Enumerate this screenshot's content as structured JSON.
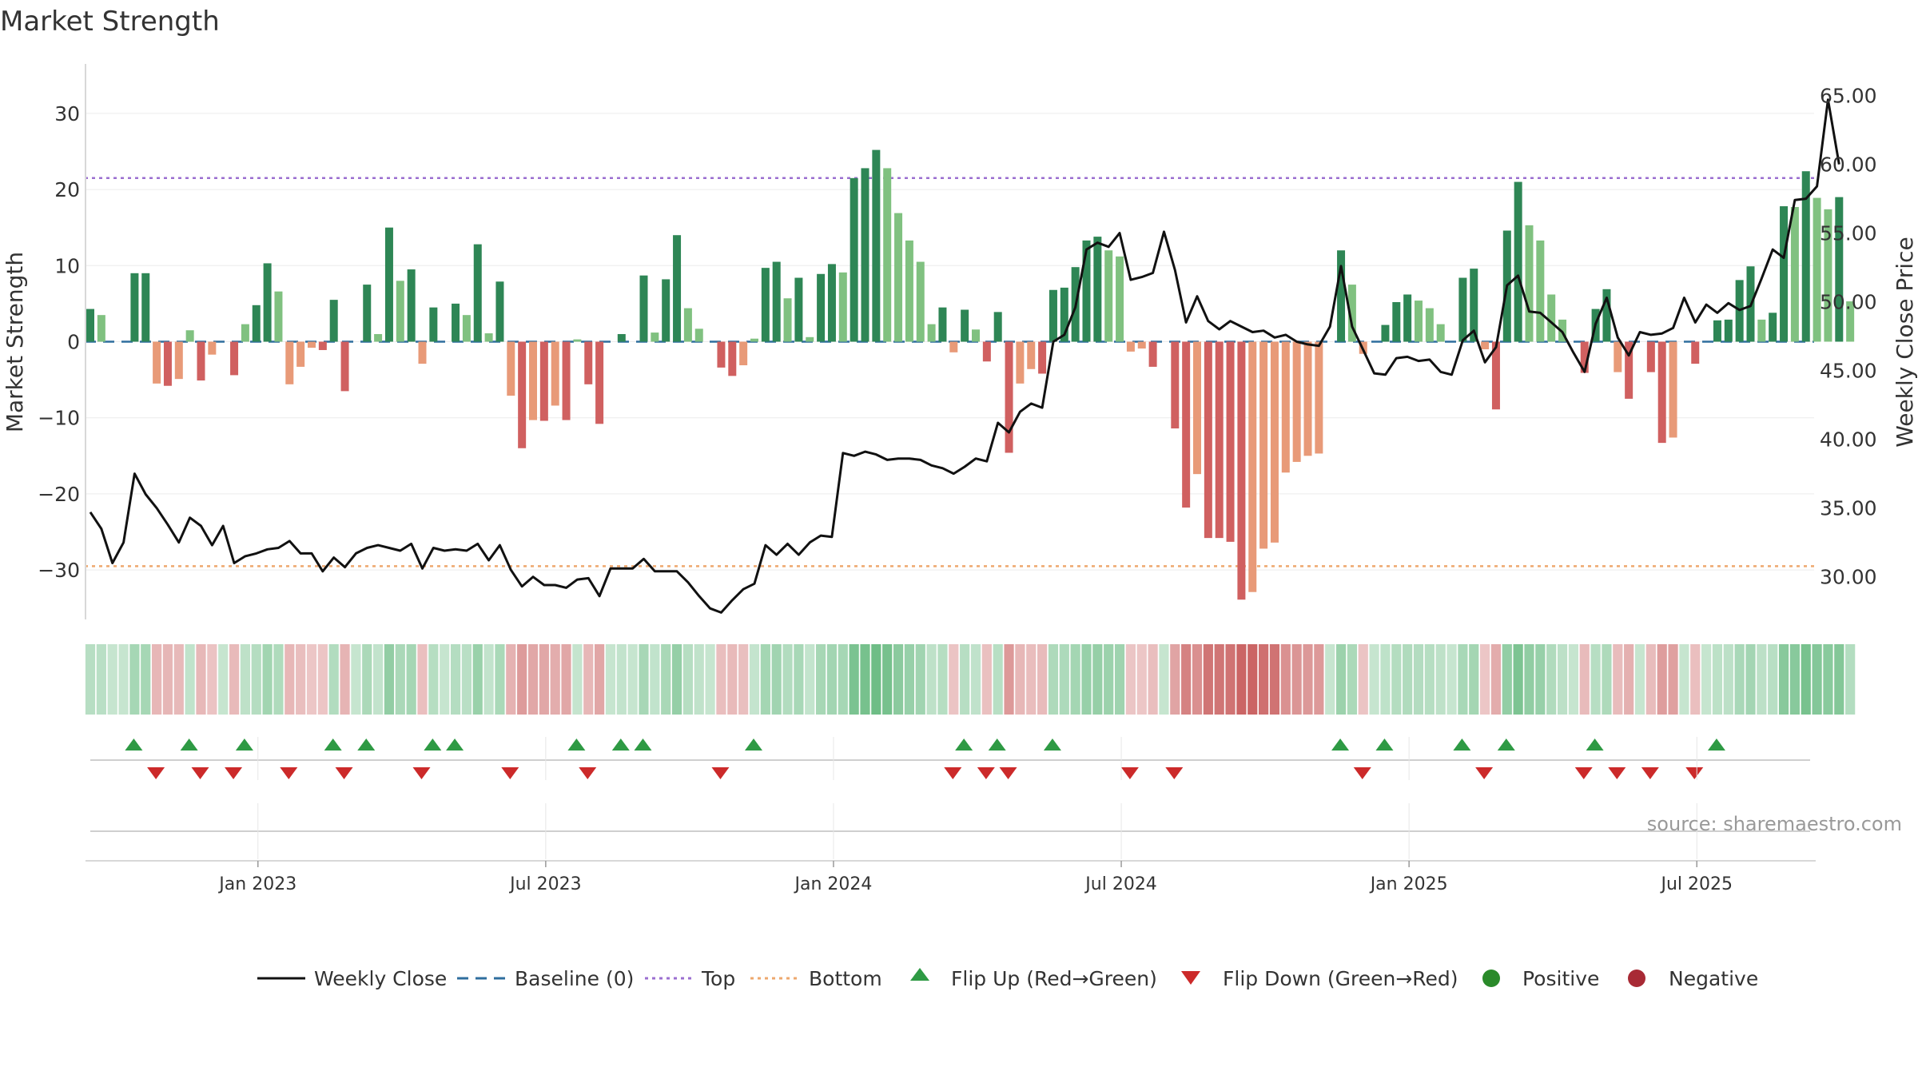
{
  "chart_data": {
    "type": "bar",
    "title": "Market Strength",
    "source": "source: sharemaestro.com",
    "ylabel_left": "Market Strength",
    "ylabel_right": "Weekly Close Price",
    "y_ticks_left": [
      30,
      20,
      10,
      0,
      -10,
      -20,
      -30
    ],
    "y_ticks_left_labels": [
      "30",
      "20",
      "10",
      "0",
      "−10",
      "−20",
      "−30"
    ],
    "y_ticks_right": [
      "65.00",
      "60.00",
      "55.00",
      "50.00",
      "45.00",
      "40.00",
      "35.00",
      "30.00"
    ],
    "y_ticks_right_values": [
      65,
      60,
      55,
      50,
      45,
      40,
      35,
      30
    ],
    "ylim_left": [
      -36.5,
      36.5
    ],
    "ylim_right": [
      26.9,
      67.3
    ],
    "x_tick_labels": [
      "Jan 2023",
      "Jul 2023",
      "Jan 2024",
      "Jul 2024",
      "Jan 2025",
      "Jul 2025"
    ],
    "x_tick_weeks": [
      15,
      41,
      67,
      93,
      119,
      145
    ],
    "top_line": 21.5,
    "bottom_line": -29.5,
    "strength": [
      4.3,
      3.5,
      0,
      0,
      9,
      9,
      -5.5,
      -5.8,
      -4.9,
      1.5,
      -5.1,
      -1.7,
      0,
      -4.4,
      2.3,
      4.8,
      10.3,
      6.6,
      -5.6,
      -3.3,
      -0.8,
      -1.1,
      5.5,
      -6.5,
      0,
      7.5,
      1,
      15,
      8,
      9.5,
      -2.9,
      4.5,
      0,
      5,
      3.5,
      12.8,
      1.1,
      7.9,
      -7.1,
      -14,
      -10.3,
      -10.4,
      -8.4,
      -10.3,
      0.3,
      -5.6,
      -10.8,
      0,
      1,
      0,
      8.7,
      1.2,
      8.2,
      14,
      4.4,
      1.7,
      0,
      -3.4,
      -4.5,
      -3.1,
      0.4,
      9.7,
      10.5,
      5.7,
      8.4,
      0.6,
      8.9,
      10.2,
      9.1,
      21.5,
      22.8,
      25.2,
      22.8,
      16.9,
      13.3,
      10.5,
      2.3,
      4.5,
      -1.4,
      4.2,
      1.6,
      -2.6,
      3.9,
      -14.6,
      -5.5,
      -3.6,
      -4.2,
      6.8,
      7.1,
      9.8,
      13.3,
      13.8,
      12,
      11.2,
      -1.3,
      -0.9,
      -3.3,
      0,
      -11.4,
      -21.8,
      -17.4,
      -25.8,
      -25.8,
      -26.3,
      -33.9,
      -32.9,
      -27.2,
      -26.4,
      -17.2,
      -15.8,
      -15,
      -14.7,
      0,
      12,
      7.5,
      -1.6,
      0,
      2.2,
      5.2,
      6.2,
      5.4,
      4.4,
      2.3,
      0,
      8.4,
      9.6,
      -1,
      -8.9,
      14.6,
      21,
      15.3,
      13.3,
      6.2,
      2.9,
      0,
      -4.1,
      4.3,
      6.9,
      -4,
      -7.5,
      0,
      -4,
      -13.3,
      -12.6,
      0,
      -2.9,
      0,
      2.8,
      2.9,
      8.1,
      9.9,
      2.9,
      3.8,
      17.8,
      17.7,
      22.4,
      18.9,
      17.4,
      19,
      5.3
    ],
    "weekly_close": [
      34.7,
      33.5,
      31,
      32.5,
      37.5,
      36,
      35,
      33.8,
      32.5,
      34.3,
      33.7,
      32.3,
      33.7,
      31,
      31.5,
      31.7,
      32,
      32.1,
      32.6,
      31.7,
      31.7,
      30.4,
      31.4,
      30.7,
      31.7,
      32.1,
      32.3,
      32.1,
      31.9,
      32.4,
      30.6,
      32.1,
      31.9,
      32,
      31.9,
      32.4,
      31.2,
      32.3,
      30.5,
      29.3,
      30,
      29.4,
      29.4,
      29.2,
      29.8,
      29.9,
      28.6,
      30.6,
      30.6,
      30.6,
      31.3,
      30.4,
      30.4,
      30.4,
      29.6,
      28.6,
      27.7,
      27.4,
      28.3,
      29.1,
      29.5,
      32.3,
      31.6,
      32.4,
      31.6,
      32.5,
      33,
      32.9,
      39,
      38.8,
      39.1,
      38.9,
      38.5,
      38.6,
      38.6,
      38.5,
      38.1,
      37.9,
      37.5,
      38,
      38.6,
      38.4,
      41.2,
      40.5,
      42,
      42.6,
      42.3,
      47.1,
      47.6,
      49.6,
      53.8,
      54.3,
      54,
      55,
      51.6,
      51.8,
      52.1,
      55.1,
      52.3,
      48.5,
      50.4,
      48.6,
      48,
      48.6,
      48.2,
      47.8,
      47.9,
      47.4,
      47.6,
      47.1,
      46.9,
      46.8,
      48.2,
      52.6,
      48.2,
      46.5,
      44.8,
      44.7,
      45.9,
      46,
      45.7,
      45.8,
      44.9,
      44.7,
      47.2,
      47.9,
      45.6,
      46.7,
      51.2,
      51.9,
      49.3,
      49.2,
      48.5,
      47.8,
      46.3,
      44.9,
      48.4,
      50.3,
      47.4,
      46.1,
      47.8,
      47.6,
      47.7,
      48.1,
      50.3,
      48.5,
      49.8,
      49.2,
      49.9,
      49.4,
      49.7,
      51.7,
      53.8,
      53.2,
      57.4,
      57.5,
      58.4,
      64.7,
      60
    ]
  },
  "legend": {
    "weekly_close": "Weekly Close",
    "baseline": "Baseline (0)",
    "top": "Top",
    "bottom": "Bottom",
    "flip_up": "Flip Up (Red→Green)",
    "flip_down": "Flip Down (Green→Red)",
    "positive": "Positive",
    "negative": "Negative"
  },
  "colors": {
    "pos_dark": "#2e8655",
    "pos_light": "#80c180",
    "neg_dark": "#d06060",
    "neg_light": "#e89a78",
    "top_line": "#9b6fd0",
    "bottom_line": "#eea86e",
    "baseline": "#2f6e9e",
    "close_line": "#111111",
    "flip_up": "#2e9a44",
    "flip_down": "#cc2a2a",
    "positive_dot": "#2a8a2a",
    "negative_dot": "#a82a35"
  }
}
